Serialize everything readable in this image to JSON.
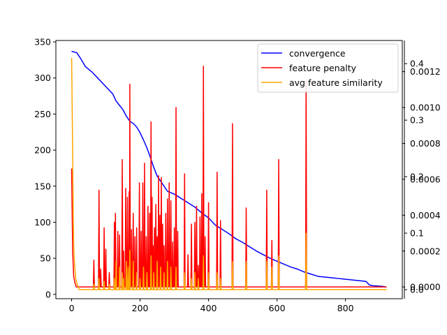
{
  "chart_data": {
    "type": "line",
    "title": "",
    "xlabel": "",
    "x_range": [
      0,
      920
    ],
    "xlim": [
      -46,
      966
    ],
    "xticks": [
      0,
      200,
      400,
      600,
      800
    ],
    "grid": false,
    "legend_placement": "top-right",
    "axes": {
      "left": {
        "ylim": [
          -6,
          352
        ],
        "ticks": [
          0,
          50,
          100,
          150,
          200,
          250,
          300,
          350
        ]
      },
      "right1": {
        "ylim": [
          -6.54e-05,
          0.0013734
        ],
        "ticks": [
          0.0,
          0.0002,
          0.0004,
          0.0006,
          0.0008,
          0.001,
          0.0012
        ],
        "tick_labels": [
          "0.0000",
          "0.0002",
          "0.0004",
          "0.0006",
          "0.0008",
          "0.0010",
          "0.0012"
        ]
      },
      "right2": {
        "ylim": [
          -0.016,
          0.441
        ],
        "ticks": [
          0.0,
          0.1,
          0.2,
          0.3,
          0.4
        ],
        "tick_labels": [
          "0.0",
          "0.1",
          "0.2",
          "0.3",
          "0.4"
        ]
      }
    },
    "series": [
      {
        "name": "convergence",
        "color": "#0000ff",
        "axis": "left",
        "x": [
          0,
          15,
          25,
          40,
          60,
          80,
          100,
          120,
          130,
          140,
          150,
          160,
          170,
          180,
          190,
          200,
          210,
          220,
          230,
          240,
          250,
          260,
          270,
          280,
          300,
          320,
          340,
          360,
          380,
          400,
          420,
          440,
          460,
          480,
          500,
          520,
          540,
          560,
          580,
          600,
          620,
          640,
          660,
          680,
          700,
          720,
          740,
          760,
          780,
          800,
          820,
          840,
          860,
          870,
          880,
          910,
          920
        ],
        "y": [
          337,
          335,
          328,
          316,
          308,
          298,
          288,
          278,
          268,
          262,
          256,
          247,
          240,
          237,
          232,
          224,
          214,
          203,
          190,
          176,
          164,
          157,
          150,
          143,
          139,
          133,
          127,
          121,
          113,
          106,
          96,
          90,
          84,
          77,
          72,
          66,
          60,
          55,
          50,
          46,
          42,
          38,
          35,
          31,
          28,
          25,
          24,
          23,
          22,
          21,
          20,
          19,
          18,
          13,
          12,
          11,
          10
        ]
      },
      {
        "name": "feature penalty",
        "color": "#ff0000",
        "axis": "right1",
        "baseline": 0.0,
        "initial": [
          [
            0,
            0.00066
          ],
          [
            3,
            0.0002
          ],
          [
            6,
            6e-05
          ],
          [
            10,
            2e-05
          ],
          [
            14,
            0.0
          ]
        ],
        "spikes": [
          [
            65,
            0.00015
          ],
          [
            80,
            0.00054
          ],
          [
            85,
            0.0001
          ],
          [
            95,
            0.00033
          ],
          [
            100,
            0.00021
          ],
          [
            110,
            8e-05
          ],
          [
            125,
            0.00036
          ],
          [
            128,
            0.00041
          ],
          [
            135,
            0.00031
          ],
          [
            140,
            0.00029
          ],
          [
            148,
            0.00071
          ],
          [
            152,
            0.0002
          ],
          [
            158,
            0.00055
          ],
          [
            163,
            0.0005
          ],
          [
            168,
            0.00053
          ],
          [
            170,
            0.00113
          ],
          [
            175,
            0.00032
          ],
          [
            180,
            0.00041
          ],
          [
            185,
            0.00028
          ],
          [
            190,
            0.00033
          ],
          [
            198,
            0.00058
          ],
          [
            203,
            0.00031
          ],
          [
            208,
            0.00058
          ],
          [
            213,
            0.00069
          ],
          [
            218,
            0.00028
          ],
          [
            223,
            0.00045
          ],
          [
            228,
            0.00041
          ],
          [
            232,
            0.00092
          ],
          [
            235,
            0.0005
          ],
          [
            238,
            0.00023
          ],
          [
            242,
            0.00033
          ],
          [
            246,
            0.00046
          ],
          [
            250,
            0.00028
          ],
          [
            254,
            0.00062
          ],
          [
            258,
            0.0004
          ],
          [
            262,
            0.00061
          ],
          [
            266,
            0.00035
          ],
          [
            270,
            0.00023
          ],
          [
            275,
            0.00041
          ],
          [
            280,
            0.00049
          ],
          [
            285,
            0.00058
          ],
          [
            290,
            0.00048
          ],
          [
            295,
            0.00025
          ],
          [
            300,
            0.00033
          ],
          [
            305,
            0.001
          ],
          [
            310,
            0.00031
          ],
          [
            330,
            0.00063
          ],
          [
            340,
            0.00018
          ],
          [
            350,
            0.00035
          ],
          [
            360,
            0.00036
          ],
          [
            365,
            0.00045
          ],
          [
            370,
            0.00012
          ],
          [
            375,
            0.00039
          ],
          [
            380,
            0.00052
          ],
          [
            385,
            0.00123
          ],
          [
            390,
            0.00028
          ],
          [
            400,
            0.00047
          ],
          [
            425,
            0.00064
          ],
          [
            435,
            0.00037
          ],
          [
            470,
            0.00091
          ],
          [
            510,
            0.00044
          ],
          [
            570,
            0.00054
          ],
          [
            585,
            0.00026
          ],
          [
            605,
            0.00071
          ],
          [
            685,
            0.00115
          ]
        ]
      },
      {
        "name": "avg feature similarity",
        "color": "#ffa500",
        "axis": "right2",
        "baseline": 0.0,
        "initial": [
          [
            0,
            0.41
          ],
          [
            2,
            0.3
          ],
          [
            4,
            0.18
          ],
          [
            6,
            0.08
          ],
          [
            9,
            0.04
          ],
          [
            12,
            0.02
          ],
          [
            16,
            0.01
          ],
          [
            22,
            0.0
          ]
        ],
        "spikes": [
          [
            65,
            0.01
          ],
          [
            80,
            0.02
          ],
          [
            95,
            0.015
          ],
          [
            110,
            0.01
          ],
          [
            125,
            0.02
          ],
          [
            130,
            0.05
          ],
          [
            140,
            0.04
          ],
          [
            148,
            0.03
          ],
          [
            152,
            0.02
          ],
          [
            160,
            0.05
          ],
          [
            165,
            0.04
          ],
          [
            170,
            0.07
          ],
          [
            180,
            0.05
          ],
          [
            190,
            0.03
          ],
          [
            200,
            0.02
          ],
          [
            210,
            0.04
          ],
          [
            220,
            0.03
          ],
          [
            232,
            0.06
          ],
          [
            240,
            0.03
          ],
          [
            250,
            0.05
          ],
          [
            260,
            0.04
          ],
          [
            270,
            0.03
          ],
          [
            280,
            0.05
          ],
          [
            290,
            0.04
          ],
          [
            305,
            0.04
          ],
          [
            330,
            0.03
          ],
          [
            350,
            0.02
          ],
          [
            360,
            0.03
          ],
          [
            370,
            0.02
          ],
          [
            385,
            0.06
          ],
          [
            400,
            0.03
          ],
          [
            425,
            0.03
          ],
          [
            435,
            0.02
          ],
          [
            470,
            0.05
          ],
          [
            510,
            0.05
          ],
          [
            570,
            0.05
          ],
          [
            585,
            0.04
          ],
          [
            605,
            0.06
          ],
          [
            685,
            0.1
          ]
        ]
      }
    ],
    "legend": [
      "convergence",
      "feature penalty",
      "avg feature similarity"
    ]
  }
}
